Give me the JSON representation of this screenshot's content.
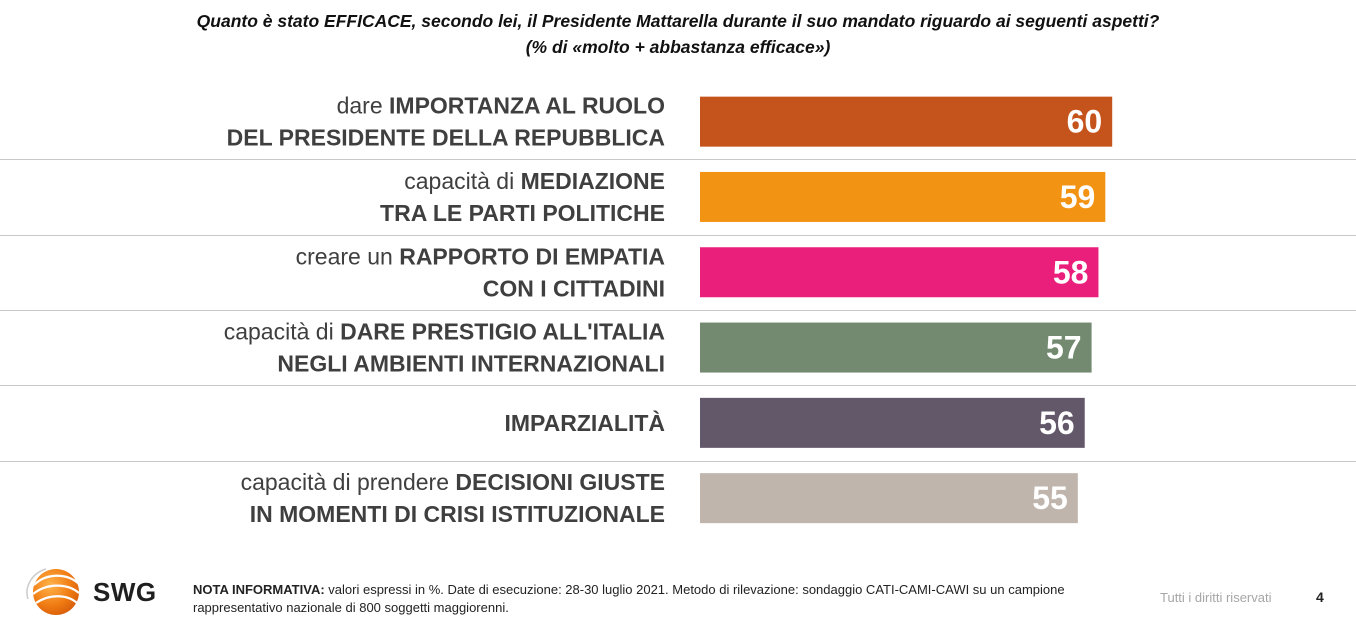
{
  "title": {
    "line1": "Quanto è stato EFFICACE, secondo lei, il Presidente Mattarella durante il suo mandato riguardo ai seguenti aspetti?",
    "line2": "(% di «molto + abbastanza efficace»)"
  },
  "chart_data": {
    "type": "bar",
    "orientation": "horizontal",
    "title": "Quanto è stato EFFICACE, secondo lei, il Presidente Mattarella durante il suo mandato riguardo ai seguenti aspetti?",
    "subtitle": "(% di «molto + abbastanza efficace»)",
    "unit": "%",
    "grid": false,
    "categories": [
      {
        "line1": [
          {
            "t": "dare ",
            "b": false
          },
          {
            "t": "IMPORTANZA AL RUOLO",
            "b": true
          }
        ],
        "line2": [
          {
            "t": "DEL PRESIDENTE DELLA REPUBBLICA",
            "b": true
          }
        ]
      },
      {
        "line1": [
          {
            "t": "capacità di ",
            "b": false
          },
          {
            "t": "MEDIAZIONE",
            "b": true
          }
        ],
        "line2": [
          {
            "t": "TRA LE PARTI POLITICHE",
            "b": true
          }
        ]
      },
      {
        "line1": [
          {
            "t": "creare un ",
            "b": false
          },
          {
            "t": "RAPPORTO DI EMPATIA",
            "b": true
          }
        ],
        "line2": [
          {
            "t": "CON I CITTADINI",
            "b": true
          }
        ]
      },
      {
        "line1": [
          {
            "t": "capacità di ",
            "b": false
          },
          {
            "t": "DARE PRESTIGIO ALL'ITALIA",
            "b": true
          }
        ],
        "line2": [
          {
            "t": "NEGLI AMBIENTI INTERNAZIONALI",
            "b": true
          }
        ]
      },
      {
        "line1": [],
        "line2": [
          {
            "t": "IMPARZIALITÀ",
            "b": true
          }
        ]
      },
      {
        "line1": [
          {
            "t": "capacità di prendere ",
            "b": false
          },
          {
            "t": "DECISIONI GIUSTE",
            "b": true
          }
        ],
        "line2": [
          {
            "t": "IN MOMENTI DI CRISI ISTITUZIONALE",
            "b": true
          }
        ]
      }
    ],
    "values": [
      60,
      59,
      58,
      57,
      56,
      55
    ],
    "colors": [
      "#c5541c",
      "#f39314",
      "#ea1f7c",
      "#738a71",
      "#625869",
      "#bfb5ad"
    ]
  },
  "footer": {
    "note_label": "NOTA INFORMATIVA:",
    "note_text": " valori espressi in %. Date di esecuzione: 28-30 luglio 2021. Metodo di rilevazione: sondaggio CATI-CAMI-CAWI su un campione rappresentativo nazionale di 800 soggetti maggiorenni.",
    "rights": "Tutti i diritti riservati",
    "page_number": "4",
    "logo_text": "SWG"
  }
}
